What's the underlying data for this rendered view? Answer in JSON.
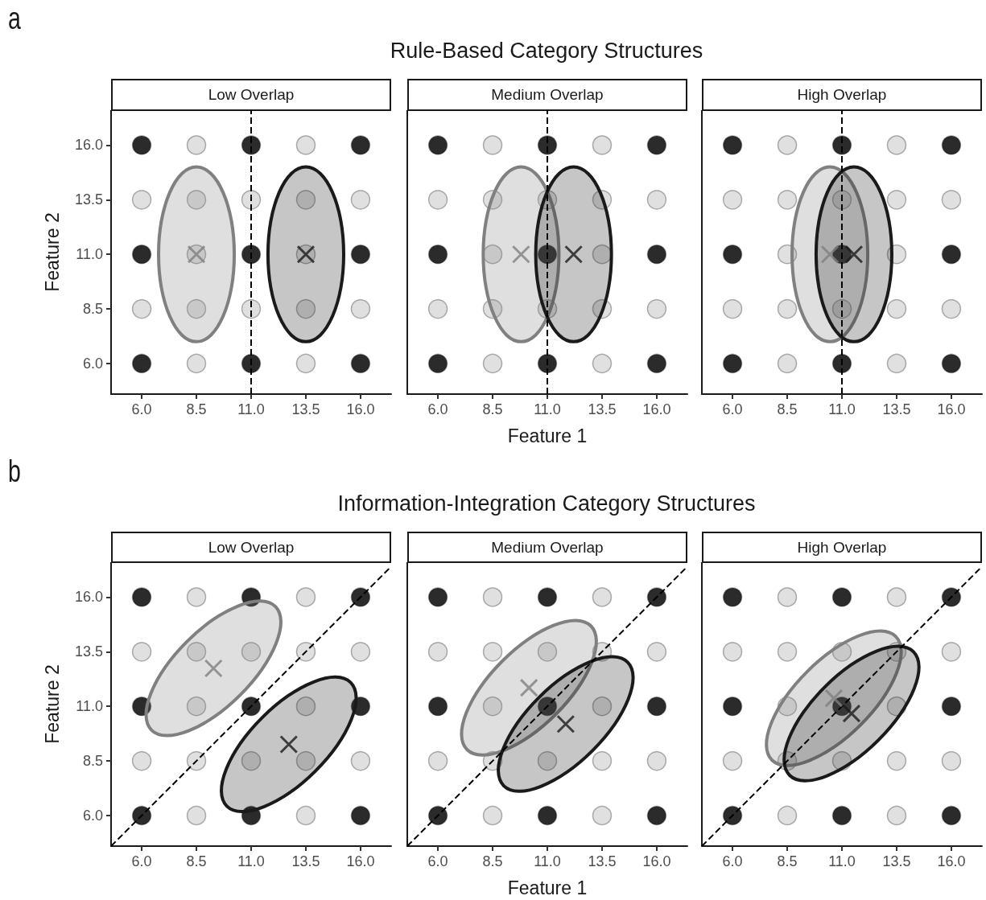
{
  "chart_data": [
    {
      "type": "scatter",
      "title": "Low Overlap",
      "ylabel": "Feature 2",
      "annotations": [
        "a",
        "Rule-Based Category Structures"
      ],
      "xlim": [
        4.6,
        17.4
      ],
      "ylim": [
        4.6,
        17.6
      ],
      "xticks": [
        {
          "value": 6,
          "label": "6.0"
        },
        {
          "value": 8.5,
          "label": "8.5"
        },
        {
          "value": 11,
          "label": "11.0"
        },
        {
          "value": 13.5,
          "label": "13.5"
        },
        {
          "value": 16,
          "label": "16.0"
        }
      ],
      "yticks": [
        {
          "value": 6,
          "label": "6.0"
        },
        {
          "value": 8.5,
          "label": "8.5"
        },
        {
          "value": 11,
          "label": "11.0"
        },
        {
          "value": 13.5,
          "label": "13.5"
        },
        {
          "value": 16,
          "label": "16.0"
        }
      ],
      "grid": false,
      "ref_lines": [
        {
          "axis": "x",
          "value": 11,
          "color": "#000000",
          "line_style": "dashed"
        }
      ],
      "series": [
        {
          "type": "scatter",
          "marker": "circle",
          "color": "#e0e0e0",
          "x": [
            8.5,
            13.5,
            6,
            8.5,
            11,
            13.5,
            16,
            8.5,
            13.5,
            6,
            8.5,
            11,
            13.5,
            16,
            8.5,
            13.5
          ],
          "values": [
            16,
            16,
            13.5,
            13.5,
            13.5,
            13.5,
            13.5,
            11,
            11,
            8.5,
            8.5,
            8.5,
            8.5,
            8.5,
            6,
            6
          ]
        },
        {
          "type": "scatter",
          "marker": "circle",
          "color": "#2b2b2b",
          "x": [
            6,
            11,
            16,
            6,
            11,
            16,
            6,
            11,
            16
          ],
          "values": [
            16,
            16,
            16,
            11,
            11,
            11,
            6,
            6,
            6
          ]
        },
        {
          "type": "area",
          "color": "#808080",
          "x": [
            10.23,
            10.1,
            9.72,
            9.16,
            8.5,
            7.84,
            7.28,
            6.9,
            6.77,
            6.9,
            7.28,
            7.84,
            8.5,
            9.16,
            9.72,
            10.1
          ],
          "values": [
            11,
            12.53,
            13.83,
            14.7,
            15,
            14.7,
            13.83,
            12.53,
            11,
            9.47,
            8.17,
            7.3,
            7,
            7.3,
            8.17,
            9.47
          ]
        },
        {
          "type": "area",
          "color": "#1a1a1a",
          "x": [
            15.23,
            15.1,
            14.72,
            14.16,
            13.5,
            12.84,
            12.28,
            11.9,
            11.77,
            11.9,
            12.28,
            12.84,
            13.5,
            14.16,
            14.72,
            15.1
          ],
          "values": [
            11,
            12.53,
            13.83,
            14.7,
            15,
            14.7,
            13.83,
            12.53,
            11,
            9.47,
            8.17,
            7.3,
            7,
            7.3,
            8.17,
            9.47
          ]
        },
        {
          "type": "scatter",
          "marker": "cross",
          "color": "#808080",
          "x": [
            8.5
          ],
          "values": [
            11
          ]
        },
        {
          "type": "scatter",
          "marker": "cross",
          "color": "#1a1a1a",
          "x": [
            13.5
          ],
          "values": [
            11
          ]
        }
      ]
    },
    {
      "type": "scatter",
      "title": "Medium Overlap",
      "xlabel": "Feature 1",
      "tick_labels": "x",
      "xlim": [
        4.6,
        17.4
      ],
      "ylim": [
        4.6,
        17.6
      ],
      "xticks": [
        {
          "value": 6,
          "label": "6.0"
        },
        {
          "value": 8.5,
          "label": "8.5"
        },
        {
          "value": 11,
          "label": "11.0"
        },
        {
          "value": 13.5,
          "label": "13.5"
        },
        {
          "value": 16,
          "label": "16.0"
        }
      ],
      "grid": false,
      "ref_lines": [
        {
          "axis": "x",
          "value": 11,
          "color": "#000000",
          "line_style": "dashed"
        }
      ],
      "series": [
        {
          "type": "scatter",
          "marker": "circle",
          "color": "#e0e0e0",
          "x": [
            8.5,
            13.5,
            6,
            8.5,
            11,
            13.5,
            16,
            8.5,
            13.5,
            6,
            8.5,
            11,
            13.5,
            16,
            8.5,
            13.5
          ],
          "values": [
            16,
            16,
            13.5,
            13.5,
            13.5,
            13.5,
            13.5,
            11,
            11,
            8.5,
            8.5,
            8.5,
            8.5,
            8.5,
            6,
            6
          ]
        },
        {
          "type": "scatter",
          "marker": "circle",
          "color": "#2b2b2b",
          "x": [
            6,
            11,
            16,
            6,
            11,
            16,
            6,
            11,
            16
          ],
          "values": [
            16,
            16,
            16,
            11,
            11,
            11,
            6,
            6,
            6
          ]
        },
        {
          "type": "area",
          "color": "#808080",
          "x": [
            11.53,
            11.4,
            11.02,
            10.46,
            9.8,
            9.14,
            8.58,
            8.2,
            8.07,
            8.2,
            8.58,
            9.14,
            9.8,
            10.46,
            11.02,
            11.4
          ],
          "values": [
            11,
            12.53,
            13.83,
            14.7,
            15,
            14.7,
            13.83,
            12.53,
            11,
            9.47,
            8.17,
            7.3,
            7,
            7.3,
            8.17,
            9.47
          ]
        },
        {
          "type": "area",
          "color": "#1a1a1a",
          "x": [
            13.93,
            13.8,
            13.42,
            12.86,
            12.2,
            11.54,
            10.98,
            10.6,
            10.47,
            10.6,
            10.98,
            11.54,
            12.2,
            12.86,
            13.42,
            13.8
          ],
          "values": [
            11,
            12.53,
            13.83,
            14.7,
            15,
            14.7,
            13.83,
            12.53,
            11,
            9.47,
            8.17,
            7.3,
            7,
            7.3,
            8.17,
            9.47
          ]
        },
        {
          "type": "scatter",
          "marker": "cross",
          "color": "#808080",
          "x": [
            9.8
          ],
          "values": [
            11
          ]
        },
        {
          "type": "scatter",
          "marker": "cross",
          "color": "#1a1a1a",
          "x": [
            12.2
          ],
          "values": [
            11
          ]
        }
      ]
    },
    {
      "type": "scatter",
      "title": "High Overlap",
      "tick_labels": "x",
      "xlim": [
        4.6,
        17.4
      ],
      "ylim": [
        4.6,
        17.6
      ],
      "xticks": [
        {
          "value": 6,
          "label": "6.0"
        },
        {
          "value": 8.5,
          "label": "8.5"
        },
        {
          "value": 11,
          "label": "11.0"
        },
        {
          "value": 13.5,
          "label": "13.5"
        },
        {
          "value": 16,
          "label": "16.0"
        }
      ],
      "grid": false,
      "ref_lines": [
        {
          "axis": "x",
          "value": 11,
          "color": "#000000",
          "line_style": "dashed"
        }
      ],
      "series": [
        {
          "type": "scatter",
          "marker": "circle",
          "color": "#e0e0e0",
          "x": [
            8.5,
            13.5,
            6,
            8.5,
            11,
            13.5,
            16,
            8.5,
            13.5,
            6,
            8.5,
            11,
            13.5,
            16,
            8.5,
            13.5
          ],
          "values": [
            16,
            16,
            13.5,
            13.5,
            13.5,
            13.5,
            13.5,
            11,
            11,
            8.5,
            8.5,
            8.5,
            8.5,
            8.5,
            6,
            6
          ]
        },
        {
          "type": "scatter",
          "marker": "circle",
          "color": "#2b2b2b",
          "x": [
            6,
            11,
            16,
            6,
            11,
            16,
            6,
            11,
            16
          ],
          "values": [
            16,
            16,
            16,
            11,
            11,
            11,
            6,
            6,
            6
          ]
        },
        {
          "type": "area",
          "color": "#808080",
          "x": [
            12.18,
            12.05,
            11.67,
            11.11,
            10.45,
            9.79,
            9.23,
            8.85,
            8.72,
            8.85,
            9.23,
            9.79,
            10.45,
            11.11,
            11.67,
            12.05
          ],
          "values": [
            11,
            12.53,
            13.83,
            14.7,
            15,
            14.7,
            13.83,
            12.53,
            11,
            9.47,
            8.17,
            7.3,
            7,
            7.3,
            8.17,
            9.47
          ]
        },
        {
          "type": "area",
          "color": "#1a1a1a",
          "x": [
            13.28,
            13.15,
            12.77,
            12.21,
            11.55,
            10.89,
            10.33,
            9.95,
            9.82,
            9.95,
            10.33,
            10.89,
            11.55,
            12.21,
            12.77,
            13.15
          ],
          "values": [
            11,
            12.53,
            13.83,
            14.7,
            15,
            14.7,
            13.83,
            12.53,
            11,
            9.47,
            8.17,
            7.3,
            7,
            7.3,
            8.17,
            9.47
          ]
        },
        {
          "type": "scatter",
          "marker": "cross",
          "color": "#808080",
          "x": [
            10.45
          ],
          "values": [
            11
          ]
        },
        {
          "type": "scatter",
          "marker": "cross",
          "color": "#1a1a1a",
          "x": [
            11.55
          ],
          "values": [
            11
          ]
        }
      ]
    },
    {
      "type": "scatter",
      "title": "Low Overlap",
      "ylabel": "Feature 2",
      "annotations": [
        "b",
        "Information-Integration Category Structures"
      ],
      "xlim": [
        4.6,
        17.4
      ],
      "ylim": [
        4.6,
        17.6
      ],
      "xticks": [
        {
          "value": 6,
          "label": "6.0"
        },
        {
          "value": 8.5,
          "label": "8.5"
        },
        {
          "value": 11,
          "label": "11.0"
        },
        {
          "value": 13.5,
          "label": "13.5"
        },
        {
          "value": 16,
          "label": "16.0"
        }
      ],
      "yticks": [
        {
          "value": 6,
          "label": "6.0"
        },
        {
          "value": 8.5,
          "label": "8.5"
        },
        {
          "value": 11,
          "label": "11.0"
        },
        {
          "value": 13.5,
          "label": "13.5"
        },
        {
          "value": 16,
          "label": "16.0"
        }
      ],
      "grid": false,
      "series": [
        {
          "type": "scatter",
          "marker": "circle",
          "color": "#e0e0e0",
          "x": [
            8.5,
            13.5,
            6,
            8.5,
            11,
            13.5,
            16,
            8.5,
            13.5,
            6,
            8.5,
            11,
            13.5,
            16,
            8.5,
            13.5
          ],
          "values": [
            16,
            16,
            13.5,
            13.5,
            13.5,
            13.5,
            13.5,
            11,
            11,
            8.5,
            8.5,
            8.5,
            8.5,
            8.5,
            6,
            6
          ]
        },
        {
          "type": "scatter",
          "marker": "circle",
          "color": "#2b2b2b",
          "x": [
            6,
            11,
            16,
            6,
            11,
            16,
            6,
            11,
            16
          ],
          "values": [
            16,
            16,
            16,
            11,
            11,
            11,
            6,
            6,
            6
          ]
        },
        {
          "type": "line",
          "line_style": "dashed",
          "color": "#000000",
          "x": [
            4.6,
            17.4
          ],
          "values": [
            4.6,
            17.4
          ]
        },
        {
          "type": "area",
          "color": "#808080",
          "x": [
            10.5,
            11.49,
            12.14,
            12.36,
            12.11,
            11.42,
            10.42,
            9.23,
            8.06,
            7.07,
            6.42,
            6.2,
            6.45,
            7.14,
            8.14,
            9.33
          ],
          "values": [
            11.52,
            12.69,
            13.88,
            14.88,
            15.57,
            15.82,
            15.6,
            14.95,
            13.96,
            12.79,
            11.6,
            10.6,
            9.91,
            9.66,
            9.88,
            10.53
          ]
        },
        {
          "type": "area",
          "color": "#1a1a1a",
          "x": [
            13.94,
            14.93,
            15.58,
            15.8,
            15.55,
            14.86,
            13.86,
            12.67,
            11.5,
            10.51,
            9.86,
            9.64,
            9.89,
            10.58,
            11.58,
            12.77
          ],
          "values": [
            8.04,
            9.21,
            10.4,
            11.4,
            12.09,
            12.34,
            12.12,
            11.47,
            10.48,
            9.31,
            8.12,
            7.12,
            6.43,
            6.18,
            6.4,
            7.05
          ]
        },
        {
          "type": "scatter",
          "marker": "cross",
          "color": "#808080",
          "x": [
            9.28
          ],
          "values": [
            12.74
          ]
        },
        {
          "type": "scatter",
          "marker": "cross",
          "color": "#1a1a1a",
          "x": [
            12.72
          ],
          "values": [
            9.26
          ]
        }
      ]
    },
    {
      "type": "scatter",
      "title": "Medium Overlap",
      "xlabel": "Feature 1",
      "tick_labels": "x",
      "xlim": [
        4.6,
        17.4
      ],
      "ylim": [
        4.6,
        17.6
      ],
      "xticks": [
        {
          "value": 6,
          "label": "6.0"
        },
        {
          "value": 8.5,
          "label": "8.5"
        },
        {
          "value": 11,
          "label": "11.0"
        },
        {
          "value": 13.5,
          "label": "13.5"
        },
        {
          "value": 16,
          "label": "16.0"
        }
      ],
      "grid": false,
      "series": [
        {
          "type": "scatter",
          "marker": "circle",
          "color": "#e0e0e0",
          "x": [
            8.5,
            13.5,
            6,
            8.5,
            11,
            13.5,
            16,
            8.5,
            13.5,
            6,
            8.5,
            11,
            13.5,
            16,
            8.5,
            13.5
          ],
          "values": [
            16,
            16,
            13.5,
            13.5,
            13.5,
            13.5,
            13.5,
            11,
            11,
            8.5,
            8.5,
            8.5,
            8.5,
            8.5,
            6,
            6
          ]
        },
        {
          "type": "scatter",
          "marker": "circle",
          "color": "#2b2b2b",
          "x": [
            6,
            11,
            16,
            6,
            11,
            16,
            6,
            11,
            16
          ],
          "values": [
            16,
            16,
            16,
            11,
            11,
            11,
            6,
            6,
            6
          ]
        },
        {
          "type": "line",
          "line_style": "dashed",
          "color": "#000000",
          "x": [
            4.6,
            17.4
          ],
          "values": [
            4.6,
            17.4
          ]
        },
        {
          "type": "area",
          "color": "#808080",
          "x": [
            11.38,
            12.37,
            13.02,
            13.24,
            12.99,
            12.3,
            11.3,
            10.11,
            8.94,
            7.95,
            7.3,
            7.08,
            7.33,
            8.02,
            9.02,
            10.21
          ],
          "values": [
            10.63,
            11.8,
            12.99,
            13.99,
            14.68,
            14.93,
            14.71,
            14.06,
            13.07,
            11.9,
            10.71,
            9.71,
            9.02,
            8.77,
            8.99,
            9.64
          ]
        },
        {
          "type": "area",
          "color": "#1a1a1a",
          "x": [
            13.06,
            14.05,
            14.7,
            14.92,
            14.67,
            13.98,
            12.98,
            11.79,
            10.62,
            9.63,
            8.98,
            8.76,
            9.01,
            9.7,
            10.7,
            11.89
          ],
          "values": [
            8.97,
            10.14,
            11.33,
            12.33,
            13.02,
            13.27,
            13.05,
            12.4,
            11.41,
            10.24,
            9.05,
            8.05,
            7.36,
            7.11,
            7.33,
            7.98
          ]
        },
        {
          "type": "scatter",
          "marker": "cross",
          "color": "#808080",
          "x": [
            10.16
          ],
          "values": [
            11.85
          ]
        },
        {
          "type": "scatter",
          "marker": "cross",
          "color": "#1a1a1a",
          "x": [
            11.84
          ],
          "values": [
            10.19
          ]
        }
      ]
    },
    {
      "type": "scatter",
      "title": "High Overlap",
      "tick_labels": "x",
      "xlim": [
        4.6,
        17.4
      ],
      "ylim": [
        4.6,
        17.6
      ],
      "xticks": [
        {
          "value": 6,
          "label": "6.0"
        },
        {
          "value": 8.5,
          "label": "8.5"
        },
        {
          "value": 11,
          "label": "11.0"
        },
        {
          "value": 13.5,
          "label": "13.5"
        },
        {
          "value": 16,
          "label": "16.0"
        }
      ],
      "grid": false,
      "series": [
        {
          "type": "scatter",
          "marker": "circle",
          "color": "#e0e0e0",
          "x": [
            8.5,
            13.5,
            6,
            8.5,
            11,
            13.5,
            16,
            8.5,
            13.5,
            6,
            8.5,
            11,
            13.5,
            16,
            8.5,
            13.5
          ],
          "values": [
            16,
            16,
            13.5,
            13.5,
            13.5,
            13.5,
            13.5,
            11,
            11,
            8.5,
            8.5,
            8.5,
            8.5,
            8.5,
            6,
            6
          ]
        },
        {
          "type": "scatter",
          "marker": "circle",
          "color": "#2b2b2b",
          "x": [
            6,
            11,
            16,
            6,
            11,
            16,
            6,
            11,
            16
          ],
          "values": [
            16,
            16,
            16,
            11,
            11,
            11,
            6,
            6,
            6
          ]
        },
        {
          "type": "line",
          "line_style": "dashed",
          "color": "#000000",
          "x": [
            4.6,
            17.4
          ],
          "values": [
            4.6,
            17.4
          ]
        },
        {
          "type": "area",
          "color": "#808080",
          "x": [
            11.85,
            12.84,
            13.49,
            13.71,
            13.46,
            12.77,
            11.77,
            10.58,
            9.41,
            8.42,
            7.77,
            7.55,
            7.8,
            8.49,
            9.49,
            10.68
          ],
          "values": [
            10.15,
            11.32,
            12.51,
            13.51,
            14.2,
            14.45,
            14.23,
            13.58,
            12.59,
            11.42,
            10.23,
            9.23,
            8.54,
            8.29,
            8.51,
            9.16
          ]
        },
        {
          "type": "area",
          "color": "#1a1a1a",
          "x": [
            12.66,
            13.65,
            14.3,
            14.52,
            14.27,
            13.58,
            12.58,
            11.39,
            10.22,
            9.23,
            8.58,
            8.36,
            8.61,
            9.3,
            10.3,
            11.49
          ],
          "values": [
            9.45,
            10.62,
            11.81,
            12.81,
            13.5,
            13.75,
            13.53,
            12.88,
            11.89,
            10.72,
            9.53,
            8.53,
            7.84,
            7.59,
            7.81,
            8.46
          ]
        },
        {
          "type": "scatter",
          "marker": "cross",
          "color": "#808080",
          "x": [
            10.63
          ],
          "values": [
            11.37
          ]
        },
        {
          "type": "scatter",
          "marker": "cross",
          "color": "#1a1a1a",
          "x": [
            11.44
          ],
          "values": [
            10.67
          ]
        }
      ]
    }
  ]
}
